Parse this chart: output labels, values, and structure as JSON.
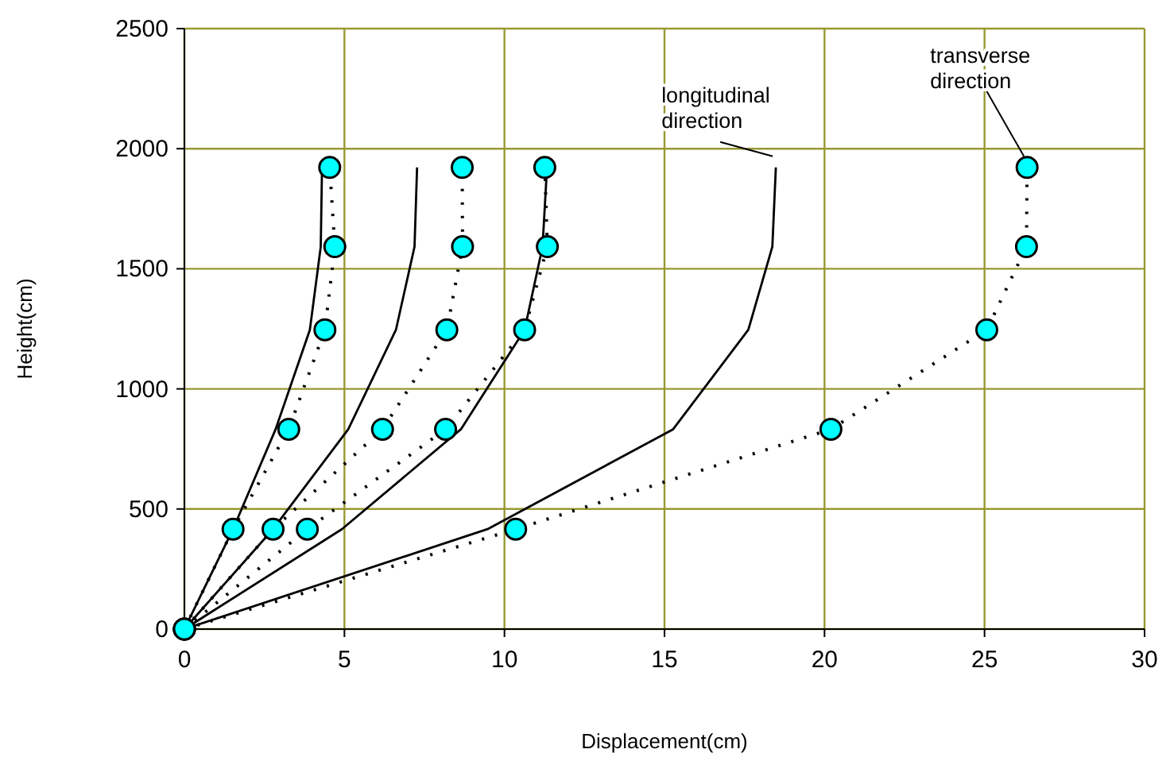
{
  "chart_data": {
    "type": "line",
    "xlabel": "Displacement(cm)",
    "ylabel": "Height(cm)",
    "xlim": [
      0,
      30
    ],
    "xticks": [
      0,
      5,
      10,
      15,
      20,
      25,
      30
    ],
    "ylim": [
      0,
      2500
    ],
    "yticks": [
      0,
      500,
      1000,
      1500,
      2000,
      2500
    ],
    "grid": true,
    "series": [
      {
        "color": "#000000",
        "marker": "none",
        "line_style": "solid",
        "x": [
          0,
          1.52,
          2.85,
          3.92,
          4.26,
          4.3
        ],
        "values": [
          0,
          416,
          832,
          1246,
          1592,
          1922
        ]
      },
      {
        "color": "#000000",
        "marker": "none",
        "line_style": "solid",
        "x": [
          0,
          2.77,
          5.12,
          6.61,
          7.19,
          7.27
        ],
        "values": [
          0,
          416,
          832,
          1246,
          1592,
          1922
        ]
      },
      {
        "color": "#000000",
        "marker": "none",
        "line_style": "solid",
        "x": [
          0,
          4.92,
          8.64,
          10.63,
          11.19,
          11.33
        ],
        "values": [
          0,
          416,
          832,
          1246,
          1592,
          1922
        ]
      },
      {
        "color": "#000000",
        "marker": "none",
        "line_style": "solid",
        "x": [
          0,
          9.47,
          15.27,
          17.62,
          18.37,
          18.48
        ],
        "values": [
          0,
          416,
          832,
          1246,
          1592,
          1922
        ]
      },
      {
        "color": "#000000",
        "marker": "none",
        "line_style": "dotted",
        "x": [
          0,
          1.52,
          3.26,
          4.39,
          4.7,
          4.54
        ],
        "values": [
          0,
          416,
          832,
          1246,
          1592,
          1922
        ]
      },
      {
        "color": "#000000",
        "marker": "none",
        "line_style": "dotted",
        "x": [
          0,
          2.77,
          6.19,
          8.2,
          8.69,
          8.68
        ],
        "values": [
          0,
          416,
          832,
          1246,
          1592,
          1922
        ]
      },
      {
        "color": "#000000",
        "marker": "none",
        "line_style": "dotted",
        "x": [
          0,
          3.84,
          8.16,
          10.63,
          11.34,
          11.26
        ],
        "values": [
          0,
          416,
          832,
          1246,
          1592,
          1922
        ]
      },
      {
        "color": "#000000",
        "marker": "none",
        "line_style": "dotted",
        "x": [
          0,
          10.35,
          20.2,
          25.07,
          26.31,
          26.33
        ],
        "values": [
          0,
          416,
          832,
          1246,
          1592,
          1922
        ]
      },
      {
        "type": "scatter",
        "color": "#00ffff",
        "marker": "circle",
        "x": [
          0,
          1.52,
          3.26,
          4.39,
          4.7,
          4.54
        ],
        "values": [
          0,
          416,
          832,
          1246,
          1592,
          1922
        ]
      },
      {
        "type": "scatter",
        "color": "#00ffff",
        "marker": "circle",
        "x": [
          0,
          2.77,
          6.19,
          8.2,
          8.69,
          8.68
        ],
        "values": [
          0,
          416,
          832,
          1246,
          1592,
          1922
        ]
      },
      {
        "type": "scatter",
        "color": "#00ffff",
        "marker": "circle",
        "x": [
          0,
          3.84,
          8.16,
          10.63,
          11.34,
          11.26
        ],
        "values": [
          0,
          416,
          832,
          1246,
          1592,
          1922
        ]
      },
      {
        "type": "scatter",
        "color": "#00ffff",
        "marker": "circle",
        "x": [
          0,
          10.35,
          20.2,
          25.07,
          26.31,
          26.33
        ],
        "values": [
          0,
          416,
          832,
          1246,
          1592,
          1922
        ]
      }
    ],
    "annotations": [
      {
        "text": "longitudinal direction",
        "x": 18.48,
        "y": 1922
      },
      {
        "text": "transverse direction",
        "x": 26.33,
        "y": 1922
      }
    ]
  }
}
